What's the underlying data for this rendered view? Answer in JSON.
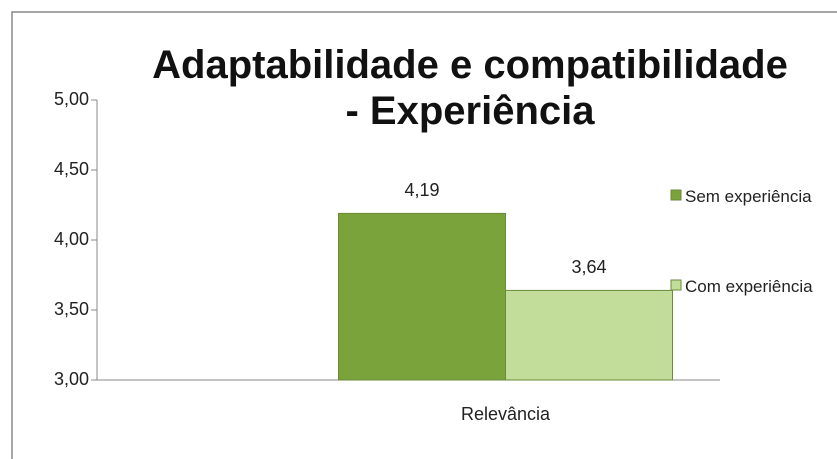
{
  "chart_data": {
    "type": "bar",
    "title": "Adaptabilidade e compatibilidade - Experiência",
    "categories": [
      "Relevância"
    ],
    "series": [
      {
        "name": "Sem experiência",
        "color": "#7aa33c",
        "values": [
          4.19
        ],
        "value_labels": [
          "4,19"
        ]
      },
      {
        "name": "Com experiência",
        "color": "#c2dc9a",
        "values": [
          3.64
        ],
        "value_labels": [
          "3,64"
        ]
      }
    ],
    "ylim": [
      3,
      5
    ],
    "yticks": [
      {
        "value": 3,
        "label": "3,00"
      },
      {
        "value": 3.5,
        "label": "3,50"
      },
      {
        "value": 4,
        "label": "4,00"
      },
      {
        "value": 4.5,
        "label": "4,50"
      },
      {
        "value": 5,
        "label": "5,00"
      }
    ],
    "legend": "right"
  }
}
